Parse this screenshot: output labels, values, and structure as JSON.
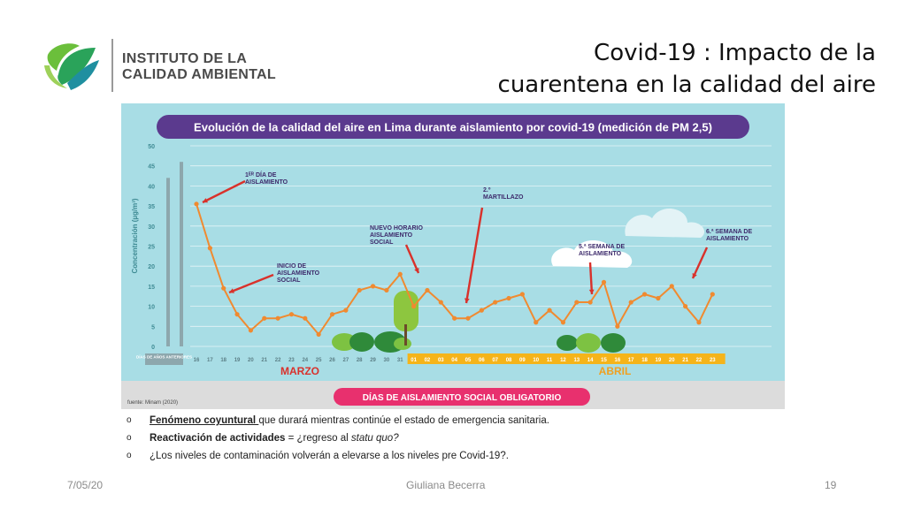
{
  "logo": {
    "line1": "INSTITUTO DE LA",
    "line2": "CALIDAD AMBIENTAL"
  },
  "slide": {
    "title_line1": "Covid-19 : Impacto de la",
    "title_line2": "cuarentena en la calidad del aire"
  },
  "chart_data": {
    "type": "line",
    "title": "Evolución de la calidad del aire en Lima durante aislamiento por covid-19 (medición de PM 2,5)",
    "ylabel": "Concentración (µg/m³)",
    "ylim": [
      0,
      50
    ],
    "yticks": [
      "0",
      "5",
      "10",
      "15",
      "20",
      "25",
      "30",
      "35",
      "40",
      "45",
      "50"
    ],
    "previous_years": {
      "label": "DÍAS DE AÑOS ANTERIORES",
      "values": [
        42,
        46
      ]
    },
    "x": [
      "16",
      "17",
      "18",
      "19",
      "20",
      "21",
      "22",
      "23",
      "24",
      "25",
      "26",
      "27",
      "28",
      "29",
      "30",
      "31",
      "01",
      "02",
      "03",
      "04",
      "05",
      "06",
      "07",
      "08",
      "09",
      "10",
      "11",
      "12",
      "13",
      "14",
      "15",
      "16",
      "17",
      "18",
      "19",
      "20",
      "21",
      "22",
      "23"
    ],
    "values": [
      35.5,
      24.5,
      14.5,
      8,
      4,
      7,
      7,
      8,
      7,
      3,
      8,
      9,
      14,
      15,
      14,
      18,
      10,
      14,
      11,
      7,
      7,
      9,
      11,
      12,
      13,
      6,
      9,
      6,
      11,
      11,
      16,
      5,
      11,
      13,
      12,
      15,
      10,
      6,
      13
    ],
    "months": {
      "march": "MARZO",
      "april": "ABRIL"
    },
    "annotations": [
      {
        "text": "1ᴱᴿ DÍA DE\nAISLAMIENTO",
        "day_index": 0
      },
      {
        "text": "INICIO DE\nAISLAMIENTO\nSOCIAL",
        "day_index": 2
      },
      {
        "text": "NUEVO HORARIO\nAISLAMIENTO\nSOCIAL",
        "day_index": 15
      },
      {
        "text": "2.º\nMARTILLAZO",
        "day_index": 19
      },
      {
        "text": "5.ª SEMANA DE\nAISLAMIENTO",
        "day_index": 28
      },
      {
        "text": "6.ª SEMANA DE\nAISLAMIENTO",
        "day_index": 35
      }
    ],
    "banner": "DÍAS DE AISLAMIENTO SOCIAL OBLIGATORIO",
    "source": "fuente: Minam (2020)",
    "colors": {
      "background": "#a8dde5",
      "line": "#f08a30",
      "title_bg": "#5b3a8e",
      "banner_bg": "#e8306e",
      "arrow": "#d9312b",
      "march_text": "#d9312b",
      "april_text": "#f0a020",
      "april_bar": "#f5b41a",
      "prev_bars": "#8da7ad"
    }
  },
  "bullets": [
    {
      "bold": "Fenómeno coyuntural ",
      "text": "que durará mientras continúe el estado de emergencia sanitaria."
    },
    {
      "bold": "Reactivación de actividades",
      "text": " = ¿regreso al ",
      "italic": "statu quo?"
    },
    {
      "text": "¿Los niveles de contaminación volverán a elevarse a los niveles pre Covid-19?."
    }
  ],
  "footer": {
    "date": "7/05/20",
    "author": "Giuliana Becerra",
    "page": "19"
  }
}
